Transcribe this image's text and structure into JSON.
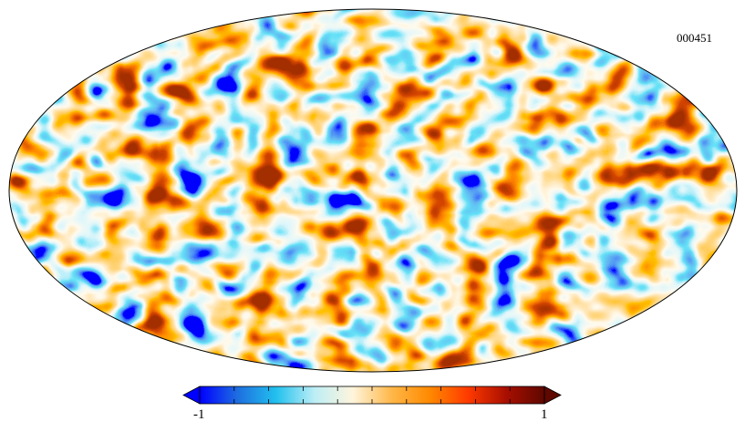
{
  "map": {
    "id_label": "000451",
    "projection": "mollweide",
    "background": "#ffffff",
    "outline_color": "#000000"
  },
  "colorbar": {
    "min_label": "-1",
    "max_label": "1",
    "min": -1,
    "max": 1,
    "ticks": [
      -1,
      -0.8,
      -0.6,
      -0.4,
      -0.2,
      0,
      0.2,
      0.4,
      0.6,
      0.8,
      1
    ],
    "colors": [
      "#0000ff",
      "#1e6fe0",
      "#22c1ee",
      "#bdeef5",
      "#fff5dc",
      "#ffb84a",
      "#ff8a00",
      "#ff3a00",
      "#a80f00",
      "#5e0800"
    ]
  }
}
